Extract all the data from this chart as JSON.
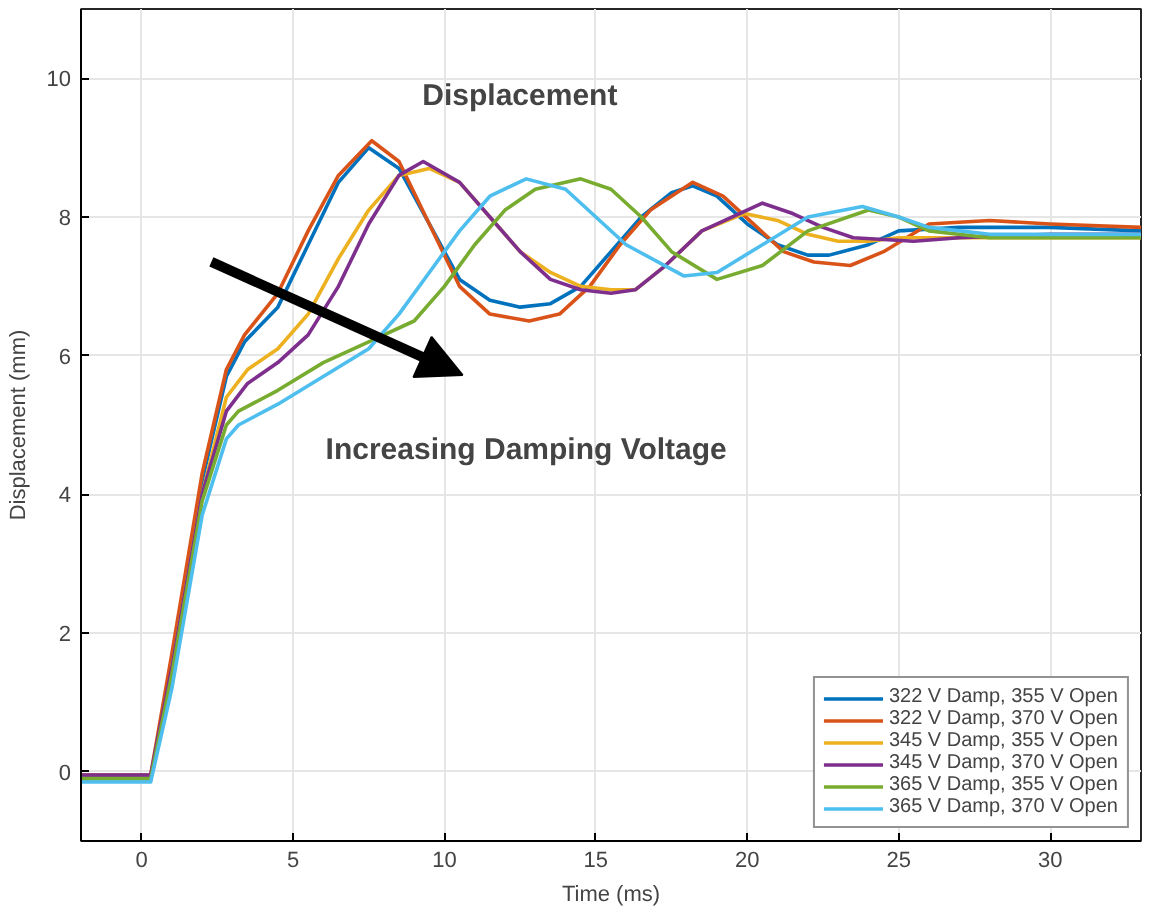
{
  "chart_data": {
    "type": "line",
    "xlabel": "Time (ms)",
    "ylabel": "Displacement (mm)",
    "annotations": [
      "Displacement",
      "Increasing Damping Voltage"
    ],
    "xlim": [
      -2,
      33
    ],
    "ylim": [
      -1,
      11
    ],
    "xticks": [
      0,
      5,
      10,
      15,
      20,
      25,
      30
    ],
    "yticks": [
      0,
      2,
      4,
      6,
      8,
      10
    ],
    "grid": true,
    "legend": "bottom right",
    "line_style": "solid",
    "marker": "none",
    "series": [
      {
        "name": "322 V Damp, 355 V Open",
        "color": "#0072bd",
        "x": [
          -2,
          0,
          0.3,
          1,
          2,
          2.8,
          3.4,
          4.5,
          5.5,
          6.5,
          7.5,
          8.5,
          9.5,
          10.5,
          11.5,
          12.5,
          13.5,
          14.5,
          15.5,
          16.5,
          17.5,
          18.2,
          19,
          20,
          21,
          22,
          22.7,
          24,
          25,
          27,
          30,
          33
        ],
        "values": [
          -0.1,
          -0.1,
          -0.1,
          1.6,
          4.2,
          5.7,
          6.2,
          6.7,
          7.6,
          8.5,
          9.0,
          8.7,
          7.9,
          7.1,
          6.8,
          6.7,
          6.75,
          7.0,
          7.5,
          8.0,
          8.35,
          8.45,
          8.3,
          7.9,
          7.6,
          7.45,
          7.45,
          7.6,
          7.8,
          7.85,
          7.85,
          7.8
        ]
      },
      {
        "name": "322 V Damp, 370 V Open",
        "color": "#d95319",
        "x": [
          -2,
          0,
          0.3,
          1,
          2,
          2.8,
          3.4,
          4.5,
          5.5,
          6.5,
          7.6,
          8.5,
          9.5,
          10.5,
          11.5,
          12.8,
          13.8,
          14.8,
          15.8,
          16.8,
          18.2,
          19.2,
          20.2,
          21.2,
          22.2,
          23.4,
          24.5,
          26,
          28,
          30,
          33
        ],
        "values": [
          -0.05,
          -0.05,
          -0.05,
          1.7,
          4.3,
          5.8,
          6.3,
          6.9,
          7.8,
          8.6,
          9.1,
          8.8,
          7.9,
          7.0,
          6.6,
          6.5,
          6.6,
          7.0,
          7.6,
          8.1,
          8.5,
          8.3,
          7.9,
          7.5,
          7.35,
          7.3,
          7.5,
          7.9,
          7.95,
          7.9,
          7.85
        ]
      },
      {
        "name": "345 V Damp, 355 V Open",
        "color": "#edb120",
        "x": [
          1,
          2,
          2.8,
          3.5,
          4.5,
          5.5,
          6.5,
          7.5,
          8.5,
          9.5,
          10.5,
          11.5,
          12.5,
          13.5,
          14.5,
          15.5,
          16.3,
          17.3,
          18.5,
          19.9,
          21,
          22,
          23,
          24,
          25,
          27,
          30,
          33
        ],
        "values": [
          1.5,
          4.0,
          5.4,
          5.8,
          6.1,
          6.6,
          7.4,
          8.1,
          8.6,
          8.7,
          8.5,
          8.0,
          7.5,
          7.2,
          7.0,
          6.95,
          6.95,
          7.3,
          7.8,
          8.05,
          7.95,
          7.75,
          7.65,
          7.65,
          7.7,
          7.7,
          7.7,
          7.7
        ]
      },
      {
        "name": "345 V Damp, 370 V Open",
        "color": "#7e2f8e",
        "x": [
          -2,
          0,
          0.3,
          1,
          2,
          2.8,
          3.5,
          4.5,
          5.5,
          6.5,
          7.5,
          8.5,
          9.3,
          10.5,
          11.5,
          12.5,
          13.5,
          14.5,
          15.5,
          16.3,
          17.3,
          18.5,
          20.5,
          21.5,
          22.5,
          23.5,
          25.5,
          27,
          30,
          33
        ],
        "values": [
          -0.05,
          -0.05,
          -0.05,
          1.5,
          4.0,
          5.2,
          5.6,
          5.9,
          6.3,
          7.0,
          7.9,
          8.6,
          8.8,
          8.5,
          8.0,
          7.5,
          7.1,
          6.95,
          6.9,
          6.95,
          7.3,
          7.8,
          8.2,
          8.05,
          7.85,
          7.7,
          7.65,
          7.7,
          7.75,
          7.75
        ]
      },
      {
        "name": "365 V Damp, 355 V Open",
        "color": "#77ac30",
        "x": [
          -2,
          0,
          0.3,
          1,
          2,
          2.8,
          3.2,
          4.5,
          6,
          7.5,
          9,
          10,
          11,
          12,
          13,
          14.5,
          15.5,
          16.5,
          17.5,
          19,
          20.5,
          22,
          24,
          25,
          26,
          28,
          30,
          33
        ],
        "values": [
          -0.1,
          -0.1,
          -0.1,
          1.4,
          3.9,
          5.0,
          5.2,
          5.5,
          5.9,
          6.2,
          6.5,
          7.0,
          7.6,
          8.1,
          8.4,
          8.55,
          8.4,
          8.0,
          7.5,
          7.1,
          7.3,
          7.8,
          8.1,
          8.0,
          7.8,
          7.7,
          7.7,
          7.7
        ]
      },
      {
        "name": "365 V Damp, 370 V Open",
        "color": "#4dbeee",
        "x": [
          -2,
          0,
          0.3,
          1,
          2,
          2.8,
          3.2,
          4.5,
          6,
          7.5,
          8.5,
          9.5,
          10.5,
          11.5,
          12.7,
          14,
          15,
          16,
          17.9,
          19,
          20.5,
          22,
          23.8,
          25,
          26,
          28,
          30,
          33
        ],
        "values": [
          -0.15,
          -0.15,
          -0.15,
          1.2,
          3.7,
          4.8,
          5.0,
          5.3,
          5.7,
          6.1,
          6.6,
          7.2,
          7.8,
          8.3,
          8.55,
          8.4,
          8.0,
          7.6,
          7.15,
          7.2,
          7.6,
          8.0,
          8.15,
          8.0,
          7.85,
          7.75,
          7.75,
          7.75
        ]
      }
    ]
  }
}
